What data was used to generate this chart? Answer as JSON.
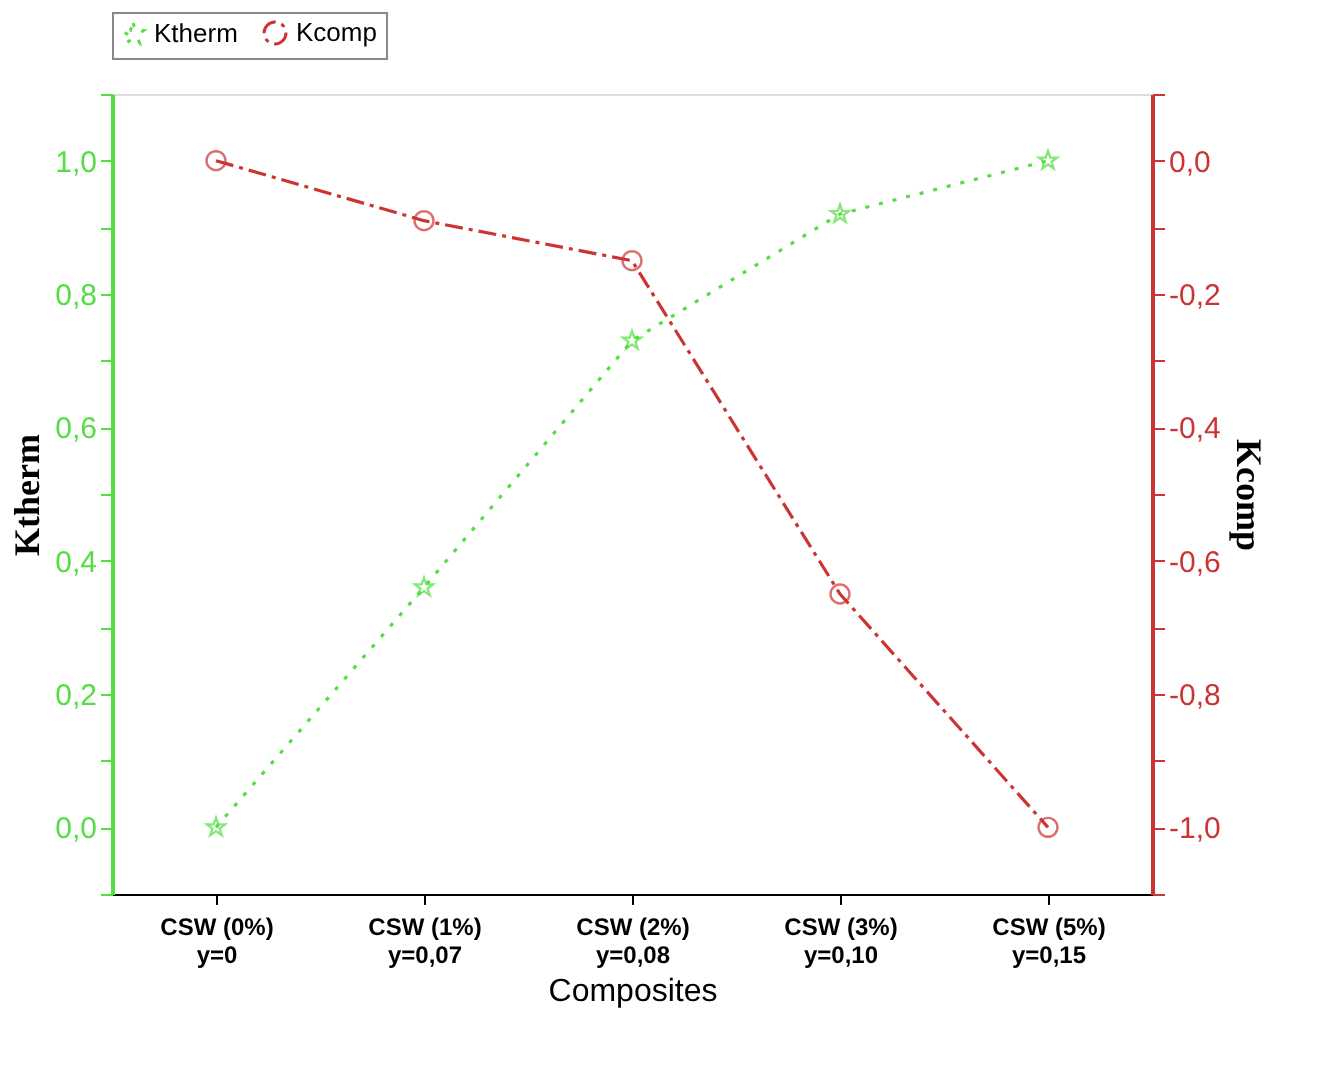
{
  "chart_data": {
    "type": "line",
    "xlabel": "Composites",
    "ylabel": "Ktherm",
    "y2label": "Kcomp",
    "categories": [
      "CSW (0%)\ny=0",
      "CSW (1%)\ny=0,07",
      "CSW (2%)\ny=0,08",
      "CSW (3%)\ny=0,10",
      "CSW (5%)\ny=0,15"
    ],
    "series": [
      {
        "name": "Ktherm",
        "color": "#55dd44",
        "values": [
          0.0,
          0.36,
          0.73,
          0.92,
          1.0
        ],
        "marker": "star",
        "line_style": "dotted"
      },
      {
        "name": "Kcomp",
        "color": "#cc3333",
        "values": [
          0.0,
          -0.09,
          -0.15,
          -0.65,
          -1.0
        ],
        "marker": "circle",
        "line_style": "dashdot",
        "axis": "y2"
      }
    ],
    "ylim": [
      -0.1,
      1.1
    ],
    "yticks": [
      {
        "value": -0.1,
        "label": null
      },
      {
        "value": 0,
        "label": "0,0"
      },
      {
        "value": 0.1,
        "label": null
      },
      {
        "value": 0.2,
        "label": "0,2"
      },
      {
        "value": 0.3,
        "label": null
      },
      {
        "value": 0.4,
        "label": "0,4"
      },
      {
        "value": 0.5,
        "label": null
      },
      {
        "value": 0.6,
        "label": "0,6"
      },
      {
        "value": 0.7,
        "label": null
      },
      {
        "value": 0.8,
        "label": "0,8"
      },
      {
        "value": 0.9,
        "label": null
      },
      {
        "value": 1.0,
        "label": "1,0"
      },
      {
        "value": 1.1,
        "label": null
      }
    ],
    "y2lim": [
      -1.1,
      0.1
    ],
    "y2ticks": [
      {
        "value": -1.1,
        "label": null
      },
      {
        "value": -1.0,
        "label": "-1,0"
      },
      {
        "value": -0.9,
        "label": null
      },
      {
        "value": -0.8,
        "label": "-0,8"
      },
      {
        "value": -0.7,
        "label": null
      },
      {
        "value": -0.6,
        "label": "-0,6"
      },
      {
        "value": -0.5,
        "label": null
      },
      {
        "value": -0.4,
        "label": "-0,4"
      },
      {
        "value": -0.3,
        "label": null
      },
      {
        "value": -0.2,
        "label": "-0,2"
      },
      {
        "value": -0.1,
        "label": null
      },
      {
        "value": 0,
        "label": "0,0"
      },
      {
        "value": 0.1,
        "label": null
      }
    ],
    "legend": "top",
    "grid": false
  }
}
